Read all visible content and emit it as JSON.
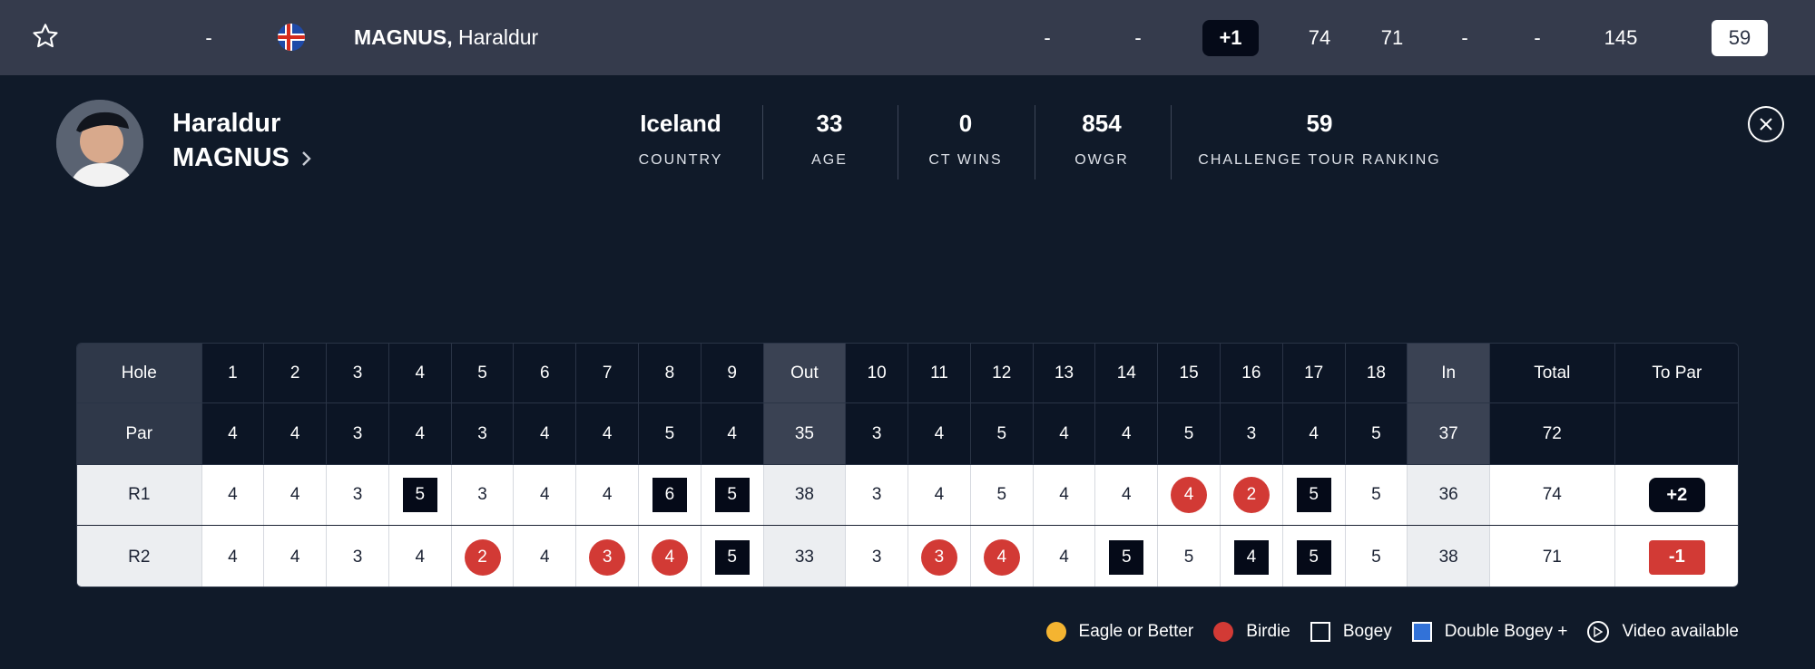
{
  "top_row": {
    "position": "-",
    "player_last": "MAGNUS,",
    "player_first": "Haraldur",
    "col_a": "-",
    "col_b": "-",
    "to_par": "+1",
    "r1": "74",
    "r2": "71",
    "r3": "-",
    "r4": "-",
    "total": "145",
    "ranking": "59"
  },
  "profile": {
    "first_name": "Haraldur",
    "last_name": "MAGNUS",
    "stats": [
      {
        "value": "Iceland",
        "label": "COUNTRY"
      },
      {
        "value": "33",
        "label": "AGE"
      },
      {
        "value": "0",
        "label": "CT WINS"
      },
      {
        "value": "854",
        "label": "OWGR"
      },
      {
        "value": "59",
        "label": "CHALLENGE TOUR RANKING"
      }
    ]
  },
  "scorecard": {
    "headers": [
      "Hole",
      "1",
      "2",
      "3",
      "4",
      "5",
      "6",
      "7",
      "8",
      "9",
      "Out",
      "10",
      "11",
      "12",
      "13",
      "14",
      "15",
      "16",
      "17",
      "18",
      "In",
      "Total",
      "To Par"
    ],
    "par": [
      "Par",
      "4",
      "4",
      "3",
      "4",
      "3",
      "4",
      "4",
      "5",
      "4",
      "35",
      "3",
      "4",
      "5",
      "4",
      "4",
      "5",
      "3",
      "4",
      "5",
      "37",
      "72",
      ""
    ],
    "rounds": [
      {
        "label": "R1",
        "cells": [
          {
            "v": "4",
            "t": "par"
          },
          {
            "v": "4",
            "t": "par"
          },
          {
            "v": "3",
            "t": "par"
          },
          {
            "v": "5",
            "t": "bogey"
          },
          {
            "v": "3",
            "t": "par"
          },
          {
            "v": "4",
            "t": "par"
          },
          {
            "v": "4",
            "t": "par"
          },
          {
            "v": "6",
            "t": "bogey"
          },
          {
            "v": "5",
            "t": "bogey"
          },
          {
            "v": "38",
            "t": "sub"
          },
          {
            "v": "3",
            "t": "par"
          },
          {
            "v": "4",
            "t": "par"
          },
          {
            "v": "5",
            "t": "par"
          },
          {
            "v": "4",
            "t": "par"
          },
          {
            "v": "4",
            "t": "par"
          },
          {
            "v": "4",
            "t": "birdie"
          },
          {
            "v": "2",
            "t": "birdie"
          },
          {
            "v": "5",
            "t": "bogey"
          },
          {
            "v": "5",
            "t": "par"
          },
          {
            "v": "36",
            "t": "sub"
          },
          {
            "v": "74",
            "t": "par"
          },
          {
            "v": "+2",
            "t": "over"
          }
        ]
      },
      {
        "label": "R2",
        "cells": [
          {
            "v": "4",
            "t": "par"
          },
          {
            "v": "4",
            "t": "par"
          },
          {
            "v": "3",
            "t": "par"
          },
          {
            "v": "4",
            "t": "par"
          },
          {
            "v": "2",
            "t": "birdie"
          },
          {
            "v": "4",
            "t": "par"
          },
          {
            "v": "3",
            "t": "birdie"
          },
          {
            "v": "4",
            "t": "birdie"
          },
          {
            "v": "5",
            "t": "bogey"
          },
          {
            "v": "33",
            "t": "sub"
          },
          {
            "v": "3",
            "t": "par"
          },
          {
            "v": "3",
            "t": "birdie"
          },
          {
            "v": "4",
            "t": "birdie"
          },
          {
            "v": "4",
            "t": "par"
          },
          {
            "v": "5",
            "t": "bogey"
          },
          {
            "v": "5",
            "t": "par"
          },
          {
            "v": "4",
            "t": "bogey"
          },
          {
            "v": "5",
            "t": "bogey"
          },
          {
            "v": "5",
            "t": "par"
          },
          {
            "v": "38",
            "t": "sub"
          },
          {
            "v": "71",
            "t": "par"
          },
          {
            "v": "-1",
            "t": "under"
          }
        ]
      }
    ]
  },
  "legend": {
    "eagle": "Eagle or Better",
    "birdie": "Birdie",
    "bogey": "Bogey",
    "double": "Double Bogey +",
    "video": "Video available"
  },
  "colors": {
    "background": "#101a29",
    "top_bar": "#353b4c",
    "birdie_red": "#d23a35",
    "eagle_yellow": "#f4b431",
    "double_bogey_blue": "#3272d8"
  }
}
